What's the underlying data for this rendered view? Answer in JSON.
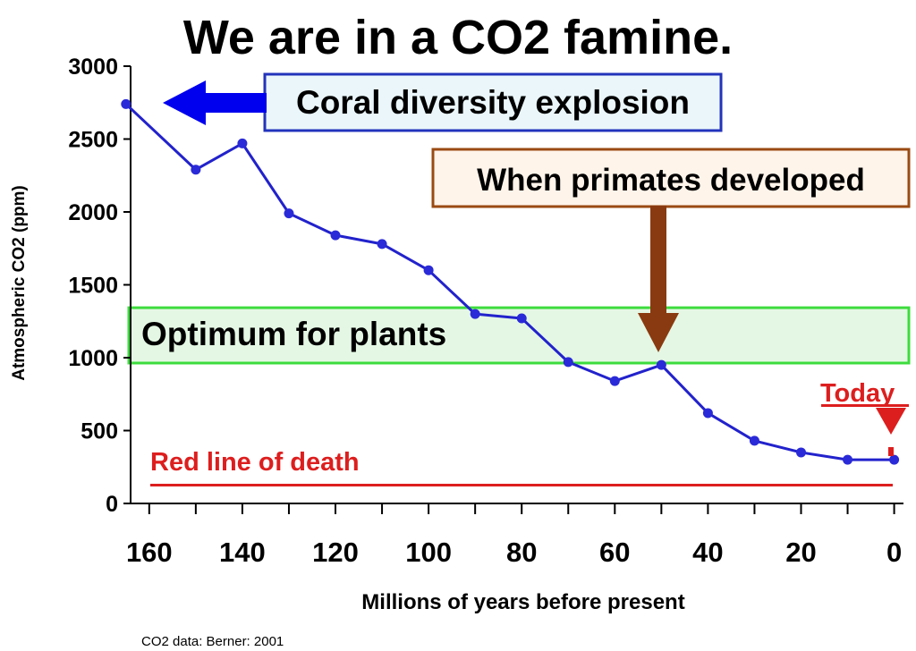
{
  "chart_data": {
    "type": "line",
    "title": "We are in a CO2 famine.",
    "xlabel": "Millions of years before present",
    "ylabel": "Atmospheric CO2 (ppm)",
    "xlim": [
      164,
      -2
    ],
    "ylim": [
      0,
      3000
    ],
    "x_ticks": [
      160,
      140,
      120,
      100,
      80,
      60,
      40,
      20,
      0
    ],
    "x_tick_labels": [
      "160",
      "140",
      "120",
      "100",
      "80",
      "60",
      "40",
      "20",
      "0"
    ],
    "y_ticks": [
      0,
      500,
      1000,
      1500,
      2000,
      2500,
      3000
    ],
    "y_tick_labels": [
      "0",
      "500",
      "1000",
      "1500",
      "2000",
      "2500",
      "3000"
    ],
    "grid": false,
    "series": [
      {
        "color": "#2222cc",
        "points": [
          {
            "x": 165,
            "y": 2740
          },
          {
            "x": 150,
            "y": 2290
          },
          {
            "x": 140,
            "y": 2470
          },
          {
            "x": 130,
            "y": 1990
          },
          {
            "x": 120,
            "y": 1840
          },
          {
            "x": 110,
            "y": 1780
          },
          {
            "x": 100,
            "y": 1600
          },
          {
            "x": 90,
            "y": 1300
          },
          {
            "x": 80,
            "y": 1270
          },
          {
            "x": 70,
            "y": 970
          },
          {
            "x": 60,
            "y": 840
          },
          {
            "x": 50,
            "y": 950
          },
          {
            "x": 40,
            "y": 620
          },
          {
            "x": 30,
            "y": 430
          },
          {
            "x": 20,
            "y": 350
          },
          {
            "x": 10,
            "y": 300
          },
          {
            "x": 0,
            "y": 300
          }
        ]
      }
    ],
    "annotations": {
      "coral": "Coral diversity explosion",
      "primates": "When primates developed",
      "optimum": "Optimum for plants",
      "today": "Today",
      "red_line": "Red line of death"
    },
    "optimum_band": [
      1000,
      1300
    ],
    "red_line_value": 150,
    "source": "CO2 data: Berner: 2001"
  },
  "colors": {
    "line": "#2222cc",
    "marker": "#2a2ad8",
    "coral_box_border": "#2233bb",
    "coral_box_fill": "#eaf6fa",
    "primate_box_border": "#9a4a12",
    "primate_box_fill": "#fff4ea",
    "primate_arrow": "#8a3a10",
    "optimum_border": "#3ddc3d",
    "optimum_fill": "#e4f7e4",
    "red": "#dd1e1e",
    "arrow_blue": "#0000ee"
  }
}
